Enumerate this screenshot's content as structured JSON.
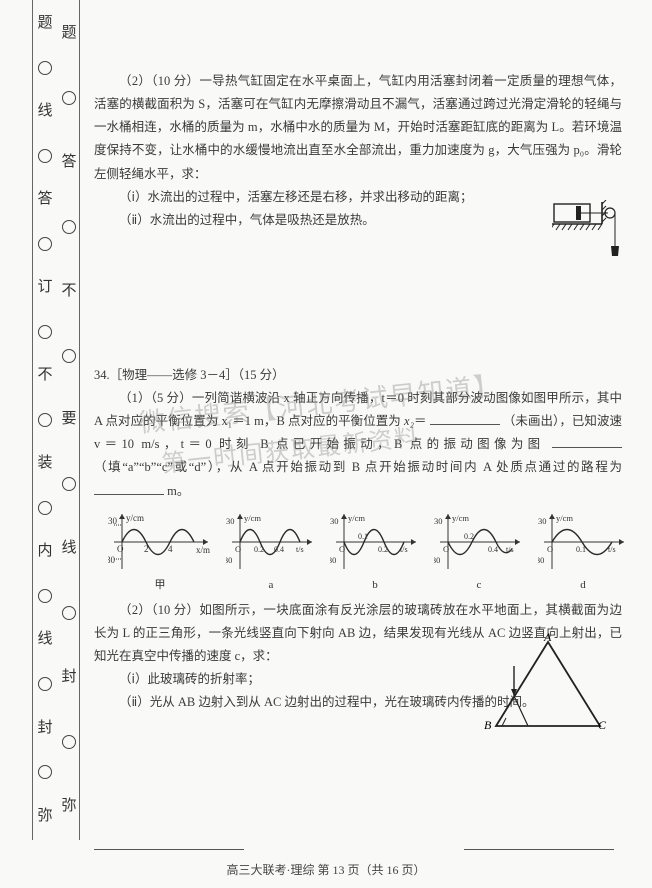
{
  "binding": {
    "col1": {
      "items": [
        "弥",
        "○",
        "封",
        "○",
        "线",
        "○",
        "内",
        "○",
        "装",
        "○",
        "不",
        "○",
        "订",
        "○",
        "答",
        "○",
        "线",
        "○",
        "题"
      ],
      "types": [
        "ch",
        "circ",
        "ch",
        "circ",
        "ch",
        "circ",
        "ch",
        "circ",
        "ch",
        "circ",
        "ch",
        "circ",
        "ch",
        "circ",
        "ch",
        "circ",
        "ch",
        "circ",
        "ch"
      ]
    },
    "col2": {
      "items": [
        "弥",
        "○",
        "封",
        "○",
        "线",
        "○",
        "要",
        "○",
        "不",
        "○",
        "答",
        "○",
        "题"
      ],
      "types": [
        "ch",
        "circ",
        "ch",
        "circ",
        "ch",
        "circ",
        "ch",
        "circ",
        "ch",
        "circ",
        "ch",
        "circ",
        "ch"
      ]
    }
  },
  "q33": {
    "p1": "（2）（10 分）一导热气缸固定在水平桌面上，气缸内用活塞封闭着一定质量的理想气体，活塞的横截面积为 S，活塞可在气缸内无摩擦滑动且不漏气，活塞通过跨过光滑定滑轮的轻绳与一水桶相连，水桶的质量为 m，水桶中水的质量为 M，开始时活塞距缸底的距离为 L。若环境温度保持不变，让水桶中的水缓慢地流出直至水全部流出，重力加速度为 g，大气压强为 p₀。滑轮左侧轻绳水平，求：",
    "i": "（ⅰ）水流出的过程中，活塞左移还是右移，并求出移动的距离；",
    "ii": "（ⅱ）水流出的过程中，气体是吸热还是放热。"
  },
  "q34": {
    "header": "34.［物理——选修 3－4］（15 分）",
    "p1a": "（1）（5 分）一列简谐横波沿 x 轴正方向传播，t＝0 时刻其部分波动图像如图甲所示，其中 A 点对应的平衡位置为 x₁＝1 m，B 点对应的平衡位置为",
    "p1b": "（未画出），已知波速 v＝10 m/s，t＝0 时刻 B 点已开始振动，B 点的振动图像为图",
    "p1c": "（填“a”“b”“c”或“d”），从 A 点开始振动到 B 点开始振动时间内 A 处质点通过的路程为",
    "p1d": "m。",
    "chart_caption_main": "甲",
    "chart_caps": [
      "a",
      "b",
      "c",
      "d"
    ],
    "axis_y_label": "y/cm",
    "axis_y_ticks": [
      "30",
      "-30"
    ],
    "main_x_ticks": [
      "0",
      "2",
      "4",
      "x/m"
    ],
    "opt_x_ticks": [
      "0",
      "0.1",
      "0.2",
      "t/s"
    ],
    "opt_x_ticks2": [
      "0",
      "0.2",
      "0.4",
      "t/s"
    ],
    "colors": {
      "axis": "#333333",
      "curve": "#2b2b2b",
      "fill": "#eeeeee"
    },
    "p2": "（2）（10 分）如图所示，一块底面涂有反光涂层的玻璃砖放在水平地面上，其横截面为边长为 L 的正三角形，一条光线竖直向下射向 AB 边，结果发现有光线从 AC 边竖直向上射出，已知光在真空中传播的速度 c，求：",
    "p2i": "（ⅰ）此玻璃砖的折射率；",
    "p2ii": "（ⅱ）光从 AB 边射入到从 AC 边射出的过程中，光在玻璃砖内传播的时间。",
    "labels": {
      "A": "A",
      "B": "B",
      "C": "C"
    }
  },
  "watermark": {
    "line1": "微信搜索【河北考试早知道】",
    "line2": "第一时间获取最新资料"
  },
  "footer": "高三大联考·理综 第 13 页（共 16 页）"
}
